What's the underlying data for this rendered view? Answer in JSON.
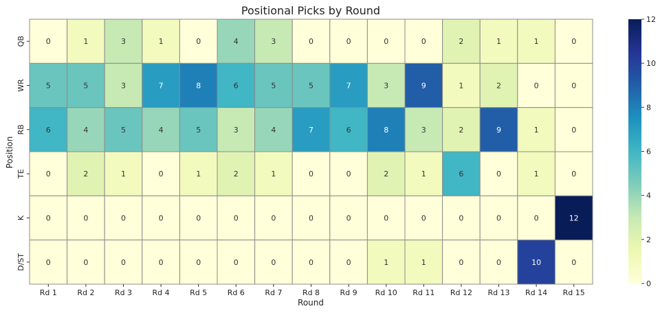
{
  "chart_data": {
    "type": "heatmap",
    "title": "Positional Picks by Round",
    "xlabel": "Round",
    "ylabel": "Position",
    "x": [
      "Rd 1",
      "Rd 2",
      "Rd 3",
      "Rd 4",
      "Rd 5",
      "Rd 6",
      "Rd 7",
      "Rd 8",
      "Rd 9",
      "Rd 10",
      "Rd 11",
      "Rd 12",
      "Rd 13",
      "Rd 14",
      "Rd 15"
    ],
    "y": [
      "QB",
      "WR",
      "RB",
      "TE",
      "K",
      "D/ST"
    ],
    "values": [
      [
        0,
        1,
        3,
        1,
        0,
        4,
        3,
        0,
        0,
        0,
        0,
        2,
        1,
        1,
        0
      ],
      [
        5,
        5,
        3,
        7,
        8,
        6,
        5,
        5,
        7,
        3,
        9,
        1,
        2,
        0,
        0
      ],
      [
        6,
        4,
        5,
        4,
        5,
        3,
        4,
        7,
        6,
        8,
        3,
        2,
        9,
        1,
        0
      ],
      [
        0,
        2,
        1,
        0,
        1,
        2,
        1,
        0,
        0,
        2,
        1,
        6,
        0,
        1,
        0
      ],
      [
        0,
        0,
        0,
        0,
        0,
        0,
        0,
        0,
        0,
        0,
        0,
        0,
        0,
        0,
        12
      ],
      [
        0,
        0,
        0,
        0,
        0,
        0,
        0,
        0,
        0,
        1,
        1,
        0,
        0,
        10,
        0
      ]
    ],
    "colorbar": {
      "min": 0,
      "max": 12,
      "ticks": [
        0,
        2,
        4,
        6,
        8,
        10,
        12
      ],
      "colormap": "YlGnBu"
    },
    "annotations": true,
    "grid": false
  }
}
